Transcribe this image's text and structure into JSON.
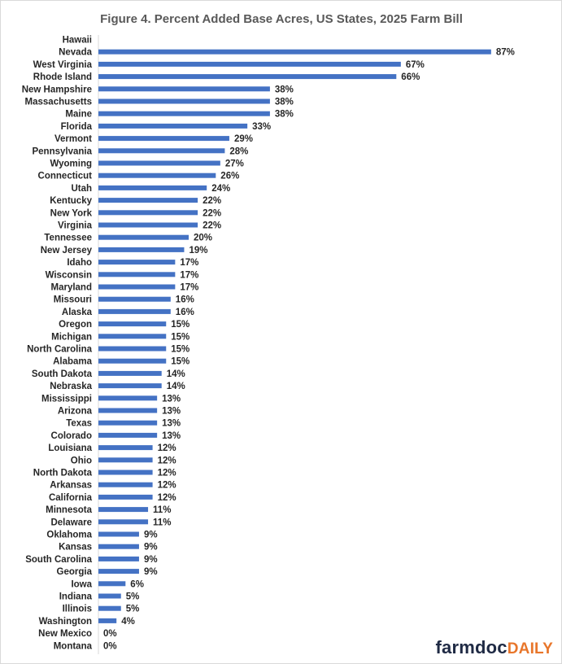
{
  "chart_data": {
    "type": "bar",
    "orientation": "horizontal",
    "title": "Figure 4.  Percent Added Base Acres, US States, 2025 Farm Bill",
    "xlabel": "",
    "ylabel": "",
    "value_suffix": "%",
    "xlim": [
      0,
      100
    ],
    "grid": false,
    "legend": "none",
    "bar_color": "#4472c4",
    "categories": [
      "Hawaii",
      "Nevada",
      "West Virginia",
      "Rhode Island",
      "New Hampshire",
      "Massachusetts",
      "Maine",
      "Florida",
      "Vermont",
      "Pennsylvania",
      "Wyoming",
      "Connecticut",
      "Utah",
      "Kentucky",
      "New York",
      "Virginia",
      "Tennessee",
      "New Jersey",
      "Idaho",
      "Wisconsin",
      "Maryland",
      "Missouri",
      "Alaska",
      "Oregon",
      "Michigan",
      "North Carolina",
      "Alabama",
      "South Dakota",
      "Nebraska",
      "Mississippi",
      "Arizona",
      "Texas",
      "Colorado",
      "Louisiana",
      "Ohio",
      "North Dakota",
      "Arkansas",
      "California",
      "Minnesota",
      "Delaware",
      "Oklahoma",
      "Kansas",
      "South Carolina",
      "Georgia",
      "Iowa",
      "Indiana",
      "Illinois",
      "Washington",
      "New Mexico",
      "Montana"
    ],
    "values": [
      null,
      87,
      67,
      66,
      38,
      38,
      38,
      33,
      29,
      28,
      27,
      26,
      24,
      22,
      22,
      22,
      20,
      19,
      17,
      17,
      17,
      16,
      16,
      15,
      15,
      15,
      15,
      14,
      14,
      13,
      13,
      13,
      13,
      12,
      12,
      12,
      12,
      12,
      11,
      11,
      9,
      9,
      9,
      9,
      6,
      5,
      5,
      4,
      0,
      0
    ],
    "value_labels": [
      "",
      "87%",
      "67%",
      "66%",
      "38%",
      "38%",
      "38%",
      "33%",
      "29%",
      "28%",
      "27%",
      "26%",
      "24%",
      "22%",
      "22%",
      "22%",
      "20%",
      "19%",
      "17%",
      "17%",
      "17%",
      "16%",
      "16%",
      "15%",
      "15%",
      "15%",
      "15%",
      "14%",
      "14%",
      "13%",
      "13%",
      "13%",
      "13%",
      "12%",
      "12%",
      "12%",
      "12%",
      "12%",
      "11%",
      "11%",
      "9%",
      "9%",
      "9%",
      "9%",
      "6%",
      "5%",
      "5%",
      "4%",
      "0%",
      "0%"
    ]
  },
  "brand": {
    "part1": "farmdoc",
    "part2": "DAILY",
    "color1": "#1f2a44",
    "color2": "#e8762b"
  }
}
